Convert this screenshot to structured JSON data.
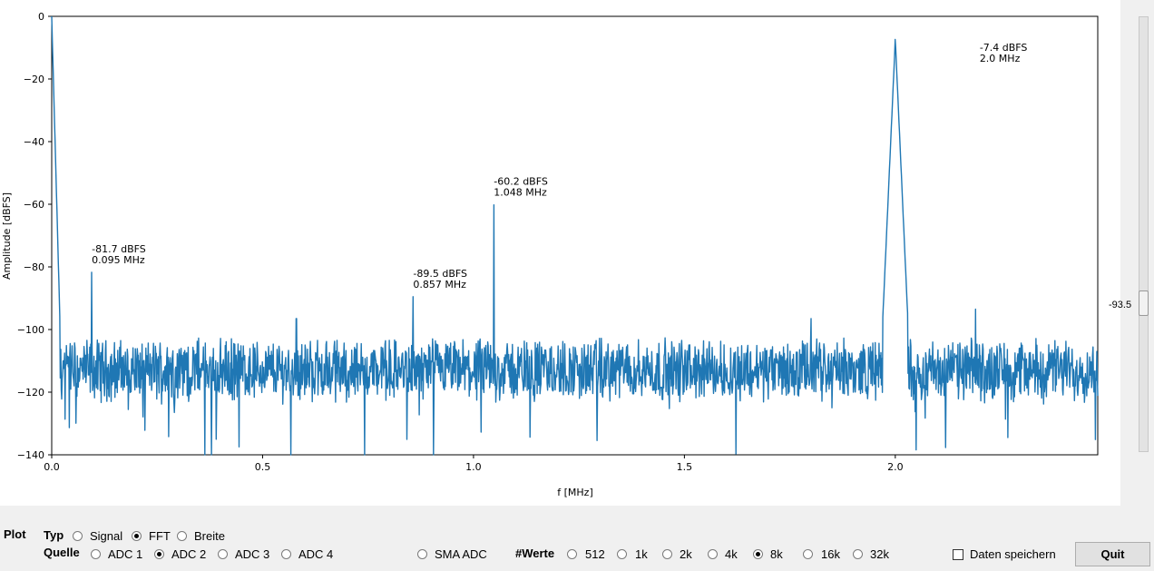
{
  "chart_data": {
    "type": "line",
    "xlabel": "f [MHz]",
    "ylabel": "Amplitude [dBFS]",
    "xlim": [
      0,
      2.48
    ],
    "ylim": [
      -140,
      0
    ],
    "xticks": [
      "0.0",
      "0.5",
      "1.0",
      "1.5",
      "2.0"
    ],
    "xtick_values": [
      0,
      0.5,
      1.0,
      1.5,
      2.0
    ],
    "yticks": [
      "0",
      "−20",
      "−40",
      "−60",
      "−80",
      "−100",
      "−120",
      "−140"
    ],
    "ytick_values": [
      0,
      -20,
      -40,
      -60,
      -80,
      -100,
      -120,
      -140
    ],
    "noise_floor": -113,
    "series_color": "#1f77b4",
    "peaks": [
      {
        "x": 0.095,
        "y": -81.7
      },
      {
        "x": 0.857,
        "y": -89.5
      },
      {
        "x": 1.048,
        "y": -60.2
      },
      {
        "x": 2.0,
        "y": -7.4
      },
      {
        "x": 0.58,
        "y": -96.5
      },
      {
        "x": 1.8,
        "y": -96.5
      },
      {
        "x": 2.19,
        "y": -93.5
      }
    ],
    "annotations": [
      {
        "x": 0.095,
        "y": -81.7,
        "line1": "-81.7 dBFS",
        "line2": "0.095 MHz"
      },
      {
        "x": 0.857,
        "y": -89.5,
        "line1": "-89.5 dBFS",
        "line2": "0.857 MHz"
      },
      {
        "x": 1.048,
        "y": -60.2,
        "line1": "-60.2 dBFS",
        "line2": "1.048 MHz"
      },
      {
        "x": 2.0,
        "y": -7.4,
        "line1": "-7.4 dBFS",
        "line2": "2.0 MHz"
      }
    ]
  },
  "slider": {
    "value": "-93.5"
  },
  "controls": {
    "plot_label": "Plot",
    "typ_label": "Typ",
    "typ_options": [
      {
        "label": "Signal",
        "selected": false
      },
      {
        "label": "FFT",
        "selected": true
      },
      {
        "label": "Breite",
        "selected": false
      }
    ],
    "quelle_label": "Quelle",
    "quelle_options": [
      {
        "label": "ADC 1",
        "selected": false
      },
      {
        "label": "ADC 2",
        "selected": true
      },
      {
        "label": "ADC 3",
        "selected": false
      },
      {
        "label": "ADC 4",
        "selected": false
      },
      {
        "label": "SMA ADC",
        "selected": false
      }
    ],
    "werte_label": "#Werte",
    "werte_options": [
      {
        "label": "512",
        "selected": false
      },
      {
        "label": "1k",
        "selected": false
      },
      {
        "label": "2k",
        "selected": false
      },
      {
        "label": "4k",
        "selected": false
      },
      {
        "label": "8k",
        "selected": true
      },
      {
        "label": "16k",
        "selected": false
      },
      {
        "label": "32k",
        "selected": false
      }
    ],
    "save_label": "Daten speichern",
    "save_checked": false,
    "quit_label": "Quit"
  }
}
